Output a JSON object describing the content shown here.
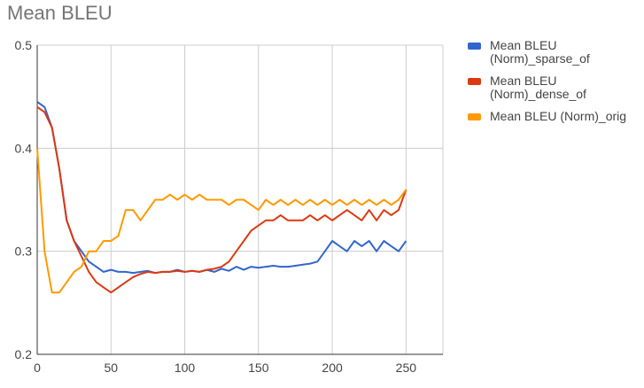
{
  "chart_data": {
    "type": "line",
    "title": "Mean BLEU",
    "xlabel": "",
    "ylabel": "",
    "xlim": [
      0,
      275
    ],
    "ylim": [
      0.2,
      0.5
    ],
    "x_ticks": [
      "0",
      "50",
      "100",
      "150",
      "200",
      "250"
    ],
    "y_ticks": [
      "0.2",
      "0.3",
      "0.4",
      "0.5"
    ],
    "grid": true,
    "legend_position": "right",
    "x": [
      0,
      5,
      10,
      15,
      20,
      25,
      30,
      35,
      40,
      45,
      50,
      55,
      60,
      65,
      70,
      75,
      80,
      85,
      90,
      95,
      100,
      105,
      110,
      115,
      120,
      125,
      130,
      135,
      140,
      145,
      150,
      155,
      160,
      165,
      170,
      175,
      180,
      185,
      190,
      195,
      200,
      205,
      210,
      215,
      220,
      225,
      230,
      235,
      240,
      245,
      250
    ],
    "series": [
      {
        "name": "Mean BLEU (Norm)_sparse_of",
        "color": "#3366cc",
        "values": [
          0.445,
          0.44,
          0.42,
          0.38,
          0.33,
          0.31,
          0.3,
          0.29,
          0.285,
          0.28,
          0.282,
          0.28,
          0.28,
          0.279,
          0.28,
          0.281,
          0.279,
          0.28,
          0.28,
          0.282,
          0.28,
          0.281,
          0.28,
          0.282,
          0.28,
          0.283,
          0.281,
          0.285,
          0.282,
          0.285,
          0.284,
          0.285,
          0.286,
          0.285,
          0.285,
          0.286,
          0.287,
          0.288,
          0.29,
          0.3,
          0.31,
          0.305,
          0.3,
          0.31,
          0.305,
          0.31,
          0.3,
          0.31,
          0.305,
          0.3,
          0.31
        ]
      },
      {
        "name": "Mean BLEU (Norm)_dense_of",
        "color": "#dc3912",
        "values": [
          0.44,
          0.435,
          0.42,
          0.38,
          0.33,
          0.31,
          0.295,
          0.28,
          0.27,
          0.265,
          0.26,
          0.265,
          0.27,
          0.275,
          0.278,
          0.28,
          0.279,
          0.28,
          0.28,
          0.281,
          0.28,
          0.281,
          0.28,
          0.282,
          0.283,
          0.285,
          0.29,
          0.3,
          0.31,
          0.32,
          0.325,
          0.33,
          0.33,
          0.335,
          0.33,
          0.33,
          0.33,
          0.335,
          0.33,
          0.335,
          0.33,
          0.335,
          0.34,
          0.335,
          0.33,
          0.34,
          0.33,
          0.34,
          0.335,
          0.34,
          0.36
        ]
      },
      {
        "name": "Mean BLEU (Norm)_orig",
        "color": "#ff9900",
        "values": [
          0.4,
          0.3,
          0.26,
          0.26,
          0.27,
          0.28,
          0.285,
          0.3,
          0.3,
          0.31,
          0.31,
          0.315,
          0.34,
          0.34,
          0.33,
          0.34,
          0.35,
          0.35,
          0.355,
          0.35,
          0.355,
          0.35,
          0.355,
          0.35,
          0.35,
          0.35,
          0.345,
          0.35,
          0.35,
          0.345,
          0.34,
          0.35,
          0.345,
          0.35,
          0.345,
          0.35,
          0.345,
          0.35,
          0.345,
          0.35,
          0.345,
          0.35,
          0.345,
          0.35,
          0.345,
          0.35,
          0.345,
          0.35,
          0.345,
          0.35,
          0.36
        ]
      }
    ]
  }
}
